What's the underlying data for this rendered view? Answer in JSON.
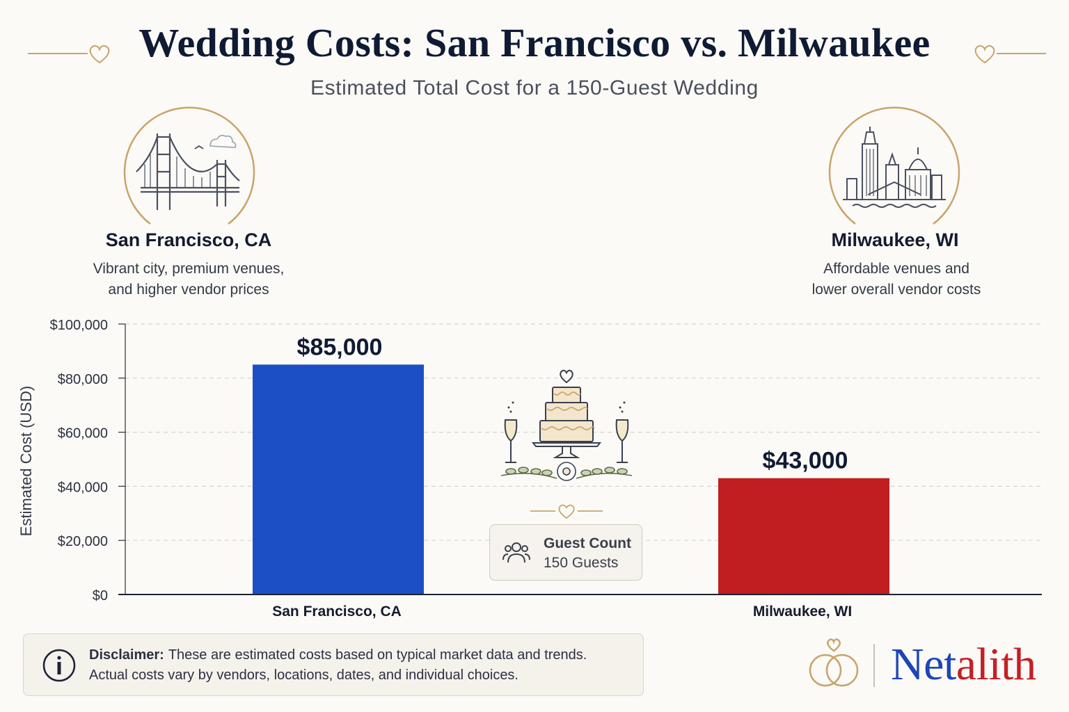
{
  "title": "Wedding Costs: San Francisco vs. Milwaukee",
  "subtitle": "Estimated Total Cost for a 150-Guest Wedding",
  "cities": [
    {
      "name": "San Francisco, CA",
      "description_line1": "Vibrant city, premium venues,",
      "description_line2": "and higher vendor prices",
      "icon": "golden-gate-bridge-icon"
    },
    {
      "name": "Milwaukee, WI",
      "description_line1": "Affordable venues and",
      "description_line2": "lower overall vendor costs",
      "icon": "milwaukee-skyline-icon"
    }
  ],
  "chart_data": {
    "type": "bar",
    "categories": [
      "San Francisco, CA",
      "Milwaukee, WI"
    ],
    "values": [
      85000,
      43000
    ],
    "value_labels": [
      "$85,000",
      "$43,000"
    ],
    "colors": [
      "#1c4fc4",
      "#c11e21"
    ],
    "title": "Wedding Costs: San Francisco vs. Milwaukee",
    "subtitle": "Estimated Total Cost for a 150-Guest Wedding",
    "xlabel": "",
    "ylabel": "Estimated Cost (USD)",
    "ylim": [
      0,
      100000
    ],
    "yticks": [
      0,
      20000,
      40000,
      60000,
      80000,
      100000
    ],
    "ytick_labels": [
      "$0",
      "$20,000",
      "$40,000",
      "$60,000",
      "$80,000",
      "$100,000"
    ],
    "grid": true,
    "grid_style": "dashed"
  },
  "guest_count": {
    "label": "Guest Count",
    "value": "150 Guests",
    "icon": "people-icon"
  },
  "center_illustration": "wedding-cake-icon",
  "disclaimer": {
    "label": "Disclaimer:",
    "text_line1": "These are estimated costs based on typical market data and trends.",
    "text_line2": "Actual costs vary by vendors, locations, dates, and individual choices.",
    "icon": "info-icon"
  },
  "brand": {
    "name_part1": "Net",
    "name_part2": "alith",
    "color_primary": "#1d45b8",
    "color_secondary": "#c42026",
    "icon": "wedding-rings-icon"
  },
  "colors": {
    "gold_accent": "#c9a46a",
    "navy_text": "#0f1a33",
    "background": "#fbfaf7"
  }
}
